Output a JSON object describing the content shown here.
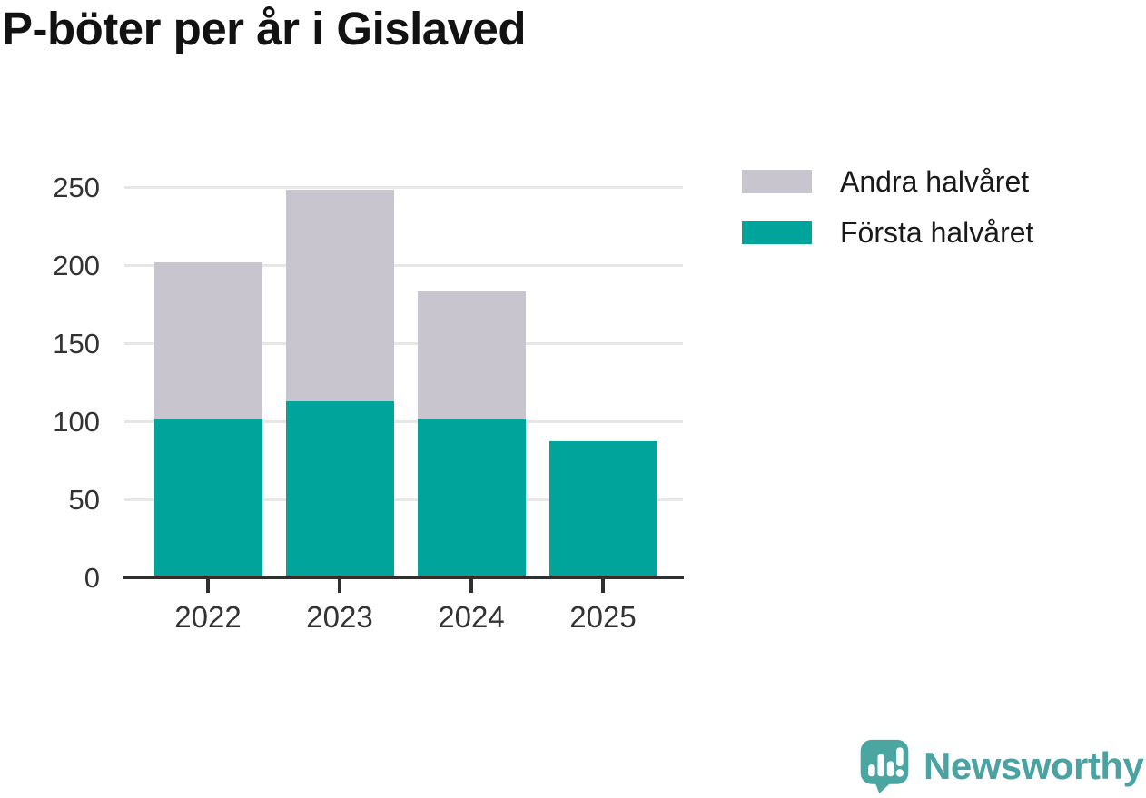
{
  "title": "P-böter per år i Gislaved",
  "legend": {
    "items": [
      {
        "label": "Andra halvåret",
        "color": "#C8C5CF"
      },
      {
        "label": "Första halvåret",
        "color": "#00A49A"
      }
    ]
  },
  "chart_data": {
    "type": "bar",
    "stacked": true,
    "title": "P-böter per år i Gislaved",
    "categories": [
      "2022",
      "2023",
      "2024",
      "2025"
    ],
    "series": [
      {
        "name": "Första halvåret",
        "color": "#00A49A",
        "values": [
          101,
          113,
          101,
          87
        ]
      },
      {
        "name": "Andra halvåret",
        "color": "#C8C5CF",
        "values": [
          101,
          135,
          82,
          0
        ]
      }
    ],
    "totals": [
      202,
      248,
      183,
      87
    ],
    "xlabel": "",
    "ylabel": "",
    "ylim": [
      0,
      250
    ],
    "yticks": [
      0,
      50,
      100,
      150,
      200,
      250
    ],
    "grid": true,
    "legend_position": "top-right"
  },
  "branding": {
    "name": "Newsworthy",
    "text_color": "#4AA3A2",
    "icon_color": "#4BA6A1",
    "icon": "newsworthy-speech-bubble-bar-chart-icon"
  }
}
